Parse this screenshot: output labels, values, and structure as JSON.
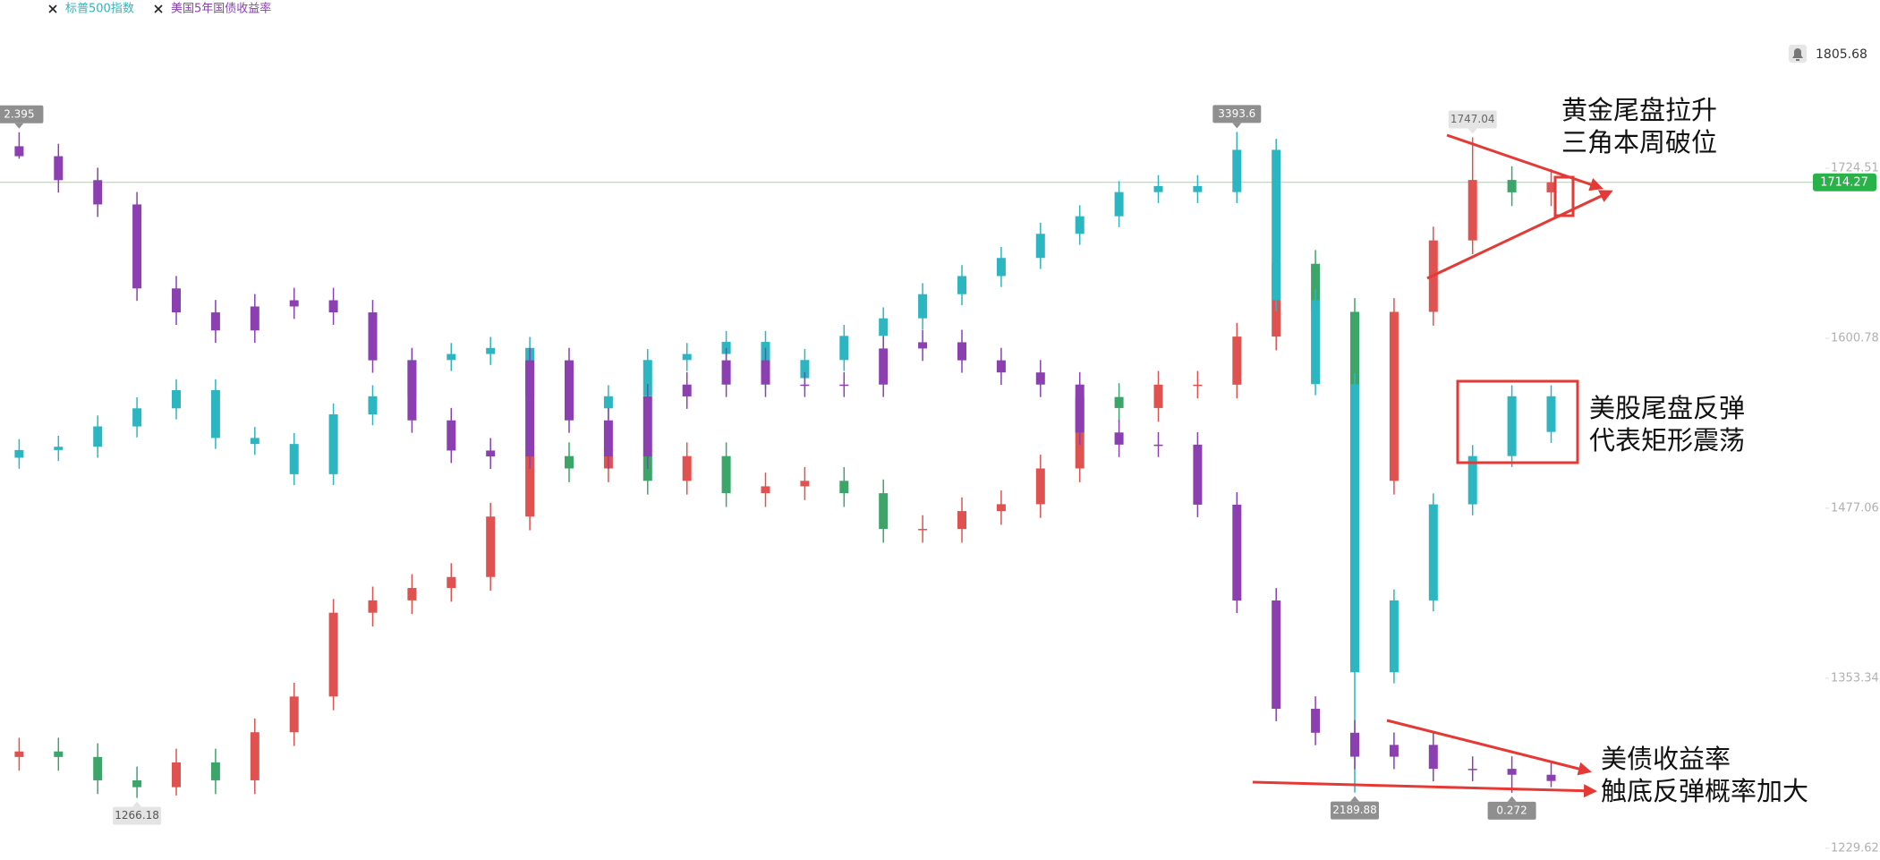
{
  "chart_data": {
    "type": "candlestick",
    "ylim": [
      1221,
      1847
    ],
    "yticks": [
      1229.62,
      1353.34,
      1477.06,
      1600.78,
      1724.51
    ],
    "alert_price": 1805.68,
    "series": [
      {
        "name": "标普500指数",
        "color": "#2bb6c2",
        "ylim": [
          2067,
          3634
        ],
        "open": [
          2800,
          2814,
          2820,
          2857,
          2890,
          2923,
          2836,
          2825,
          2770,
          2879,
          2912,
          2978,
          2989,
          3000,
          2912,
          2890,
          2912,
          2978,
          2989,
          3011,
          2945,
          2978,
          3022,
          3054,
          3098,
          3131,
          3164,
          3208,
          3240,
          3284,
          3295,
          3284,
          3361,
          3087,
          2934,
          2409,
          2540,
          2715,
          2803,
          2912
        ],
        "high": [
          2834,
          2840,
          2877,
          2910,
          2943,
          2943,
          2856,
          2845,
          2899,
          2932,
          2998,
          3009,
          3020,
          3020,
          2932,
          2932,
          2998,
          3009,
          3031,
          3031,
          2998,
          3042,
          3074,
          3118,
          3151,
          3184,
          3228,
          3260,
          3304,
          3315,
          3315,
          3393.6,
          3381,
          3107,
          2954,
          2560,
          2735,
          2823,
          2932,
          2932
        ],
        "low": [
          2780,
          2794,
          2800,
          2837,
          2870,
          2816,
          2805,
          2750,
          2750,
          2859,
          2892,
          2958,
          2969,
          2892,
          2870,
          2870,
          2892,
          2958,
          2969,
          2925,
          2925,
          2958,
          3002,
          3034,
          3078,
          3111,
          3144,
          3188,
          3220,
          3264,
          3264,
          3264,
          3067,
          2914,
          2189.88,
          2389,
          2520,
          2695,
          2783,
          2827
        ],
        "close": [
          2814,
          2820,
          2857,
          2890,
          2923,
          2836,
          2825,
          2770,
          2879,
          2912,
          2978,
          2989,
          3000,
          2912,
          2890,
          2912,
          2978,
          2989,
          3011,
          2945,
          2978,
          3022,
          3054,
          3098,
          3131,
          3164,
          3208,
          3240,
          3284,
          3295,
          3284,
          3361,
          3087,
          2934,
          2409,
          2540,
          2715,
          2803,
          2912,
          2847
        ]
      },
      {
        "name": "美国5年国债收益率",
        "color": "#8b3fb0",
        "ylim": [
          0.056,
          2.82
        ],
        "open": [
          2.35,
          2.318,
          2.241,
          2.163,
          1.893,
          1.816,
          1.758,
          1.835,
          1.855,
          1.816,
          1.662,
          1.469,
          1.372,
          1.353,
          1.662,
          1.469,
          1.353,
          1.546,
          1.584,
          1.662,
          1.584,
          1.584,
          1.584,
          1.7,
          1.72,
          1.662,
          1.623,
          1.584,
          1.43,
          1.391,
          1.391,
          1.198,
          0.89,
          0.542,
          0.465,
          0.388,
          0.426,
          0.349,
          0.349,
          0.33
        ],
        "high": [
          2.395,
          2.358,
          2.281,
          2.203,
          1.933,
          1.856,
          1.875,
          1.895,
          1.895,
          1.856,
          1.702,
          1.509,
          1.412,
          1.702,
          1.702,
          1.509,
          1.586,
          1.624,
          1.702,
          1.702,
          1.624,
          1.624,
          1.74,
          1.76,
          1.76,
          1.702,
          1.663,
          1.624,
          1.47,
          1.431,
          1.431,
          1.238,
          0.93,
          0.582,
          0.505,
          0.466,
          0.466,
          0.389,
          0.389,
          0.37
        ],
        "low": [
          2.31,
          2.201,
          2.123,
          1.853,
          1.776,
          1.718,
          1.718,
          1.795,
          1.776,
          1.622,
          1.429,
          1.332,
          1.313,
          1.313,
          1.429,
          1.313,
          1.313,
          1.506,
          1.544,
          1.544,
          1.544,
          1.544,
          1.544,
          1.66,
          1.622,
          1.583,
          1.544,
          1.39,
          1.351,
          1.351,
          1.158,
          0.85,
          0.502,
          0.425,
          0.348,
          0.348,
          0.309,
          0.309,
          0.272,
          0.29
        ],
        "close": [
          2.318,
          2.241,
          2.163,
          1.893,
          1.816,
          1.758,
          1.835,
          1.855,
          1.816,
          1.662,
          1.469,
          1.372,
          1.353,
          1.662,
          1.469,
          1.353,
          1.546,
          1.584,
          1.662,
          1.584,
          1.584,
          1.584,
          1.7,
          1.72,
          1.662,
          1.623,
          1.584,
          1.43,
          1.391,
          1.391,
          1.198,
          0.89,
          0.542,
          0.465,
          0.388,
          0.426,
          0.349,
          0.349,
          0.33,
          0.31
        ]
      },
      {
        "up_color": "#e0524f",
        "down_color": "#3ca56a",
        "open": [
          1296,
          1300,
          1296,
          1279,
          1274,
          1292,
          1279,
          1314,
          1340,
          1401,
          1410,
          1419,
          1427,
          1471,
          1515,
          1506,
          1515,
          1497,
          1515,
          1488,
          1493,
          1497,
          1488,
          1462,
          1462,
          1475,
          1480,
          1506,
          1558,
          1550,
          1567,
          1567,
          1602,
          1655,
          1620,
          1497,
          1620,
          1672,
          1716,
          1707
        ],
        "high": [
          1310,
          1310,
          1306,
          1289,
          1302,
          1302,
          1324,
          1350,
          1411,
          1420,
          1429,
          1437,
          1481,
          1525,
          1525,
          1525,
          1525,
          1525,
          1525,
          1503,
          1507,
          1507,
          1498,
          1472,
          1485,
          1490,
          1516,
          1568,
          1568,
          1577,
          1577,
          1612,
          1665,
          1665,
          1630,
          1630,
          1682,
          1747.04,
          1726,
          1724
        ],
        "low": [
          1286,
          1286,
          1269,
          1266.18,
          1268,
          1269,
          1269,
          1304,
          1330,
          1391,
          1400,
          1409,
          1417,
          1461,
          1496,
          1496,
          1487,
          1487,
          1478,
          1478,
          1483,
          1478,
          1452,
          1452,
          1452,
          1465,
          1470,
          1496,
          1540,
          1540,
          1557,
          1557,
          1592,
          1610,
          1487,
          1487,
          1610,
          1662,
          1697,
          1697
        ],
        "close": [
          1300,
          1296,
          1279,
          1274,
          1292,
          1279,
          1314,
          1340,
          1401,
          1410,
          1419,
          1427,
          1471,
          1515,
          1506,
          1515,
          1497,
          1515,
          1488,
          1493,
          1497,
          1488,
          1462,
          1462,
          1475,
          1480,
          1506,
          1558,
          1550,
          1567,
          1567,
          1602,
          1655,
          1620,
          1497,
          1620,
          1672,
          1716,
          1707,
          1714.27
        ]
      }
    ],
    "annotations": [
      "黄金尾盘拉升",
      "三角本周破位",
      "美股尾盘反弹",
      "代表矩形震荡",
      "美债收益率",
      "触底反弹概率加大"
    ]
  }
}
